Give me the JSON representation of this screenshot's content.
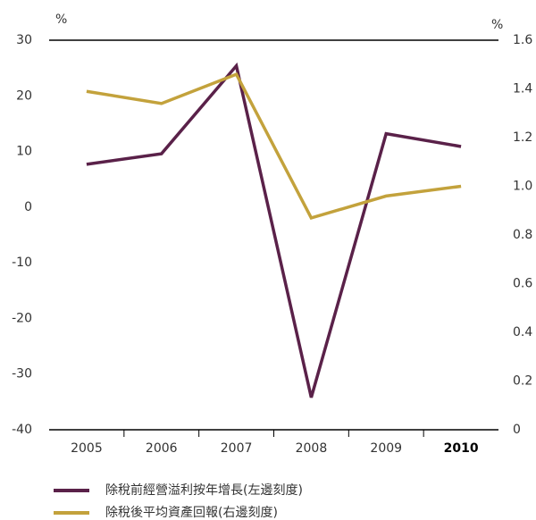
{
  "chart_data": {
    "type": "line",
    "ylabel": "%",
    "y2label": "%",
    "categories": [
      "2005",
      "2006",
      "2007",
      "2008",
      "2009",
      "2010"
    ],
    "series": [
      {
        "name": "除稅前經營溢利按年增長(左邊刻度)",
        "color": "#5a2149",
        "values": [
          7.7,
          9.6,
          25.4,
          -34.2,
          13.2,
          10.9
        ]
      },
      {
        "name": "除稅後平均資產回報(右邊刻度)",
        "color": "#c3a23c",
        "axis": "y2",
        "values": [
          1.39,
          1.34,
          1.46,
          0.87,
          0.96,
          1.0
        ]
      }
    ],
    "ylim": [
      -40,
      30
    ],
    "yticks": [
      30,
      20,
      10,
      0,
      -10,
      -20,
      -30,
      -40
    ],
    "y2lim": [
      0,
      1.6
    ],
    "y2ticks": [
      {
        "value": 1.6,
        "label": "1.6"
      },
      {
        "value": 1.4,
        "label": "1.4"
      },
      {
        "value": 1.2,
        "label": "1.2"
      },
      {
        "value": 1.0,
        "label": "1.0"
      },
      {
        "value": 0.8,
        "label": "0.8"
      },
      {
        "value": 0.6,
        "label": "0.6"
      },
      {
        "value": 0.4,
        "label": "0.4"
      },
      {
        "value": 0.2,
        "label": "0.2"
      },
      0
    ]
  }
}
